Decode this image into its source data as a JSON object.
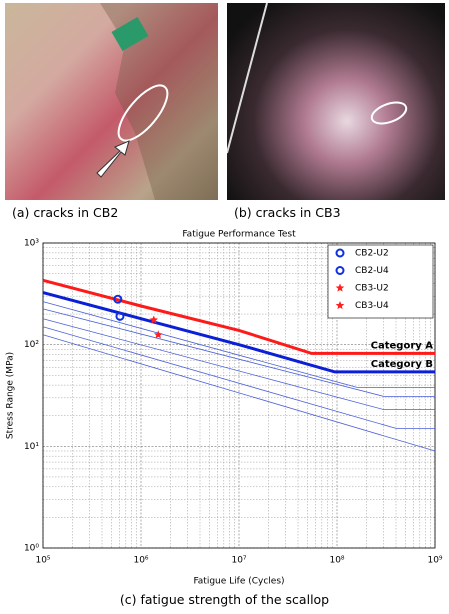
{
  "photos": {
    "captions": [
      "(a) cracks in CB2",
      "(b) cracks in CB3"
    ]
  },
  "caption": "(c) fatigue strength of the scallop",
  "chart_data": {
    "type": "line",
    "title": "Fatigue Performance Test",
    "xlabel": "Fatigue Life (Cycles)",
    "ylabel": "Stress Range (MPa)",
    "xscale": "log",
    "yscale": "log",
    "grid": true,
    "legend": "upper right",
    "xlim": [
      100000,
      1000000000
    ],
    "ylim": [
      1,
      1000
    ],
    "xticks": [
      {
        "value": 100000,
        "label": "10⁵"
      },
      {
        "value": 1000000,
        "label": "10⁶"
      },
      {
        "value": 10000000,
        "label": "10⁷"
      },
      {
        "value": 100000000,
        "label": "10⁸"
      },
      {
        "value": 1000000000,
        "label": "10⁹"
      }
    ],
    "yticks": [
      {
        "value": 1,
        "label": "10⁰"
      },
      {
        "value": 10,
        "label": "10¹"
      },
      {
        "value": 100,
        "label": "10²"
      },
      {
        "value": 1000,
        "label": "10³"
      }
    ],
    "xminorticks": [
      200000,
      300000,
      400000,
      500000,
      600000,
      700000,
      800000,
      900000,
      2000000,
      3000000,
      4000000,
      5000000,
      6000000,
      7000000,
      8000000,
      9000000,
      20000000,
      30000000,
      40000000,
      50000000,
      60000000,
      70000000,
      80000000,
      90000000,
      200000000,
      300000000,
      400000000,
      500000000,
      600000000,
      700000000,
      800000000,
      900000000
    ],
    "yminorticks": [
      2,
      3,
      4,
      5,
      6,
      7,
      8,
      9,
      20,
      30,
      40,
      50,
      60,
      70,
      80,
      90,
      200,
      300,
      400,
      500,
      600,
      700,
      800,
      900
    ],
    "series": [
      {
        "color": "#4a5fd8",
        "width": 0.8,
        "x": [
          100000,
          160000000,
          1000000000
        ],
        "values": [
          265,
          38,
          38
        ]
      },
      {
        "color": "#4a5fd8",
        "width": 0.8,
        "x": [
          100000,
          300000000,
          1000000000
        ],
        "values": [
          225,
          31,
          31
        ]
      },
      {
        "color": "#4a5fd8",
        "width": 0.8,
        "x": [
          100000,
          300000000,
          1000000000
        ],
        "values": [
          180,
          23,
          23
        ]
      },
      {
        "color": "#4a5fd8",
        "width": 0.8,
        "x": [
          100000,
          400000000,
          1000000000
        ],
        "values": [
          150,
          15,
          15
        ]
      },
      {
        "color": "#4a5fd8",
        "width": 0.8,
        "x": [
          100000,
          1000000000
        ],
        "values": [
          125,
          9
        ]
      },
      {
        "name": "Category A",
        "color": "#ff1a1a",
        "width": 3,
        "x": [
          100000,
          1000000,
          10000000,
          55000000,
          1000000000
        ],
        "values": [
          430,
          240,
          138,
          82,
          82
        ]
      },
      {
        "name": "Category B",
        "color": "#0a1fd6",
        "width": 3,
        "x": [
          100000,
          1000000,
          10000000,
          95000000,
          1000000000
        ],
        "values": [
          325,
          180,
          100,
          54,
          54
        ]
      },
      {
        "name": "CB2-U2",
        "color": "#1030e0",
        "marker": "circle",
        "x": [
          580000
        ],
        "values": [
          280
        ]
      },
      {
        "name": "CB2-U4",
        "color": "#1030e0",
        "marker": "circle",
        "x": [
          610000
        ],
        "values": [
          190
        ]
      },
      {
        "name": "CB3-U2",
        "color": "#ff2020",
        "marker": "star",
        "x": [
          1350000
        ],
        "values": [
          175
        ]
      },
      {
        "name": "CB3-U4",
        "color": "#ff2020",
        "marker": "star",
        "x": [
          1500000
        ],
        "values": [
          125
        ]
      }
    ]
  }
}
